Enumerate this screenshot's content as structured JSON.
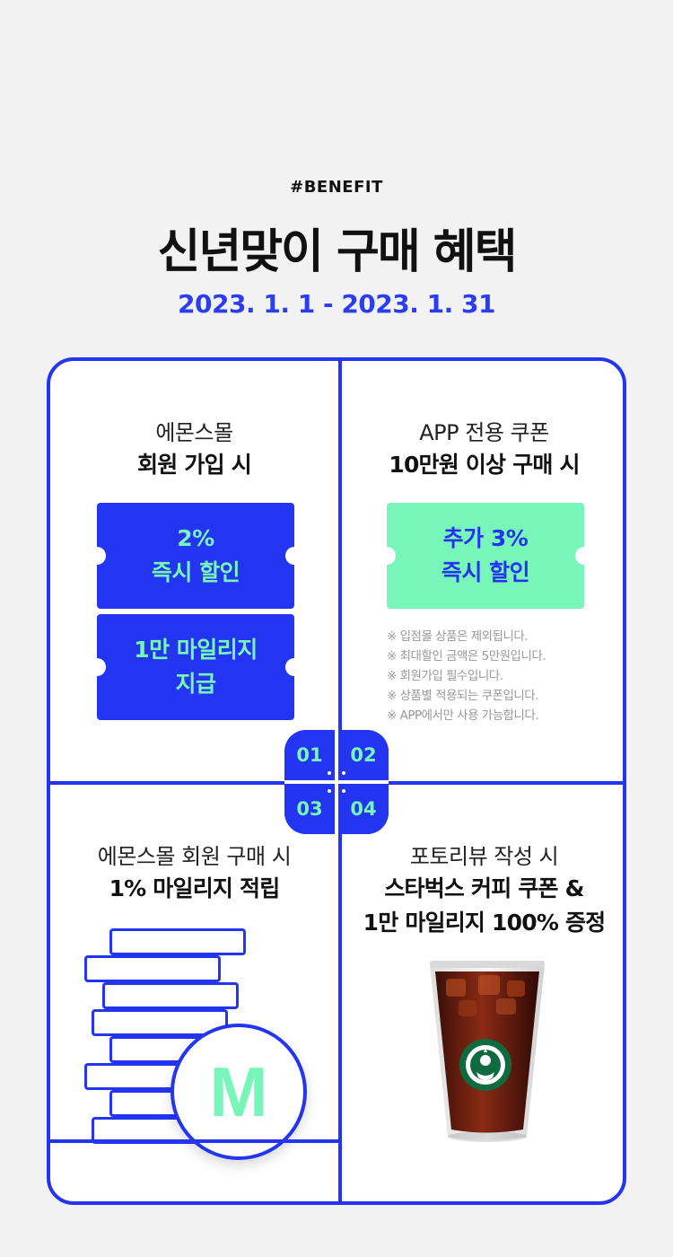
{
  "header": {
    "tag": "#BENEFIT",
    "title": "신년맞이 구매 혜택",
    "period": "2023. 1. 1 - 2023. 1. 31"
  },
  "colors": {
    "accent_blue": "#2335f0",
    "accent_green": "#78f5b8"
  },
  "benefits": [
    {
      "number": "01",
      "subtitle": "에몬스몰",
      "headline": "회원 가입 시",
      "coupons": [
        {
          "line1": "2%",
          "line2": "즉시 할인"
        },
        {
          "line1": "1만 마일리지",
          "line2": "지급"
        }
      ]
    },
    {
      "number": "02",
      "subtitle": "APP 전용 쿠폰",
      "headline": "10만원 이상 구매 시",
      "coupon": {
        "line1": "추가 3%",
        "line2": "즉시 할인"
      },
      "notes": [
        "※ 입점몰 상품은 제외됩니다.",
        "※ 최대할인 금액은 5만원입니다.",
        "※ 회원가입 필수입니다.",
        "※ 상품별 적용되는 쿠폰입니다.",
        "※ APP에서만 사용 가능합니다."
      ]
    },
    {
      "number": "03",
      "subtitle": "에몬스몰 회원 구매 시",
      "headline": "1% 마일리지 적립",
      "coin_letter": "M",
      "icon": "coin-stack-icon"
    },
    {
      "number": "04",
      "subtitle": "포토리뷰 작성 시",
      "headline1": "스타벅스 커피 쿠폰 &",
      "headline2": "1만 마일리지 100% 증정",
      "icon": "iced-coffee-icon"
    }
  ]
}
